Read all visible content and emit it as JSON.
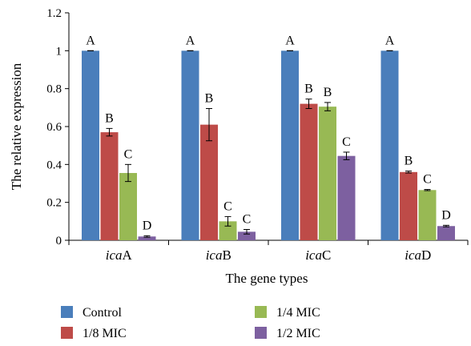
{
  "chart_data": {
    "type": "bar",
    "xlabel": "The gene types",
    "ylabel": "The relative expression",
    "ylim": [
      0,
      1.2
    ],
    "yticks": [
      "0",
      "0.2",
      "0.4",
      "0.6",
      "0.8",
      "1",
      "1.2"
    ],
    "categories": [
      {
        "italic": "ica",
        "suffix": "A"
      },
      {
        "italic": "ica",
        "suffix": "B"
      },
      {
        "italic": "ica",
        "suffix": "C"
      },
      {
        "italic": "ica",
        "suffix": "D"
      }
    ],
    "series": [
      {
        "name": "Control",
        "color": "#4a7ebb",
        "values": [
          1.0,
          1.0,
          1.0,
          1.0
        ],
        "errors": [
          0.0,
          0.0,
          0.0,
          0.0
        ],
        "labels": [
          "A",
          "A",
          "A",
          "A"
        ]
      },
      {
        "name": "1/8 MIC",
        "color": "#be4b48",
        "values": [
          0.57,
          0.61,
          0.72,
          0.36
        ],
        "errors": [
          0.02,
          0.085,
          0.025,
          0.005
        ],
        "labels": [
          "B",
          "B",
          "B",
          "B"
        ]
      },
      {
        "name": "1/4 MIC",
        "color": "#98b954",
        "values": [
          0.355,
          0.1,
          0.705,
          0.265
        ],
        "errors": [
          0.045,
          0.025,
          0.022,
          0.003
        ],
        "labels": [
          "C",
          "C",
          "B",
          "C"
        ]
      },
      {
        "name": "1/2 MIC",
        "color": "#7d60a0",
        "values": [
          0.02,
          0.045,
          0.445,
          0.075
        ],
        "errors": [
          0.004,
          0.012,
          0.02,
          0.004
        ],
        "labels": [
          "D",
          "C",
          "C",
          "D"
        ]
      }
    ],
    "legend_position": "bottom"
  }
}
